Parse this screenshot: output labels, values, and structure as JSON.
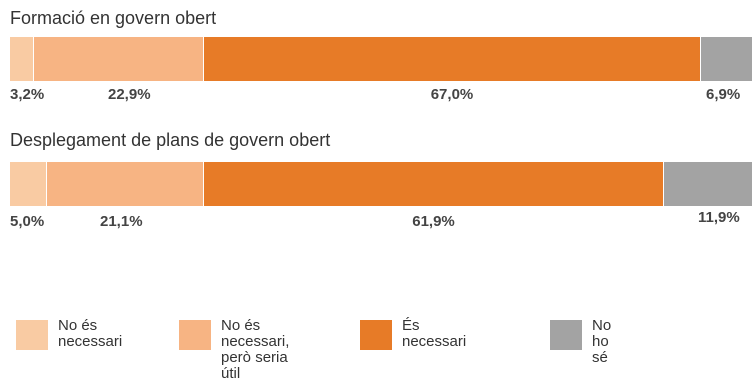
{
  "chart_data": {
    "type": "bar",
    "orientation": "horizontal-stacked-100",
    "series": [
      {
        "name": "No és\nnecessari",
        "color": "#f9cba3"
      },
      {
        "name": "No és necessari,\nperò seria útil",
        "color": "#f7b483"
      },
      {
        "name": "És\nnecessari",
        "color": "#e77b27"
      },
      {
        "name": "No\nho sé",
        "color": "#a3a3a3"
      }
    ],
    "bars": [
      {
        "title": "Formació en govern obert",
        "values": [
          3.2,
          22.9,
          67.0,
          6.9
        ],
        "labels": [
          "3,2%",
          "22,9%",
          "67,0%",
          "6,9%"
        ]
      },
      {
        "title": "Desplegament de plans de govern obert",
        "values": [
          5.0,
          21.1,
          61.9,
          11.9
        ],
        "labels": [
          "5,0%",
          "21,1%",
          "61,9%",
          "11,9%"
        ]
      }
    ],
    "legend_position": "bottom"
  }
}
